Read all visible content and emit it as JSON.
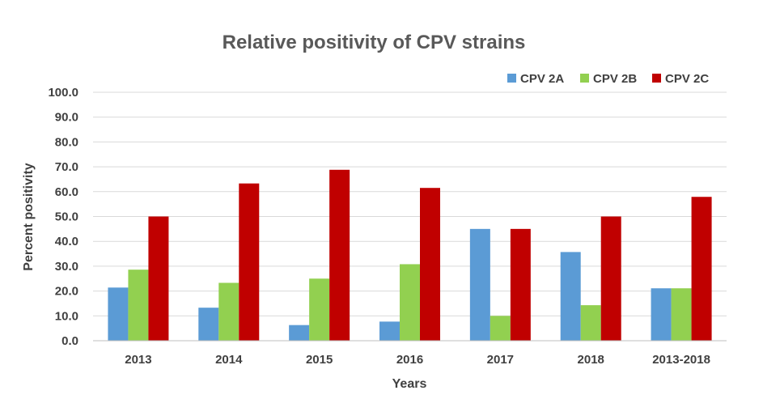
{
  "chart_data": {
    "type": "bar",
    "title": "Relative positivity of CPV strains",
    "xlabel": "Years",
    "ylabel": "Percent positivity",
    "categories": [
      "2013",
      "2014",
      "2015",
      "2016",
      "2017",
      "2018",
      "2013-2018"
    ],
    "series": [
      {
        "name": "CPV 2A",
        "color": "#5b9bd5",
        "values": [
          21.4,
          13.3,
          6.3,
          7.7,
          45.0,
          35.7,
          21.1
        ]
      },
      {
        "name": "CPV 2B",
        "color": "#92d050",
        "values": [
          28.6,
          23.3,
          25.0,
          30.8,
          10.0,
          14.3,
          21.1
        ]
      },
      {
        "name": "CPV 2C",
        "color": "#c00000",
        "values": [
          50.0,
          63.3,
          68.8,
          61.5,
          45.0,
          50.0,
          57.9
        ]
      }
    ],
    "ylim": [
      0,
      100
    ],
    "yticks": [
      "0.0",
      "10.0",
      "20.0",
      "30.0",
      "40.0",
      "50.0",
      "60.0",
      "70.0",
      "80.0",
      "90.0",
      "100.0"
    ],
    "grid": true,
    "legend_position": "top-right"
  }
}
